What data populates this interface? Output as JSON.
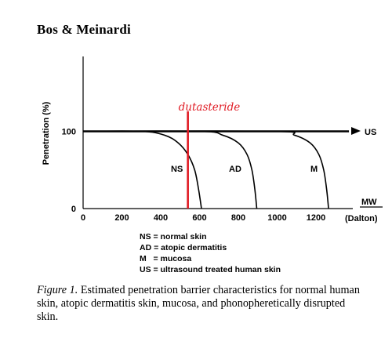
{
  "header": {
    "running_title": "Bos & Meinardi"
  },
  "chart_data": {
    "type": "line",
    "ylabel": "Penetration (%)",
    "xlabel": "MW",
    "x_unit_label": "(Dalton)",
    "x_ticks": [
      0,
      200,
      400,
      600,
      800,
      1000,
      1200
    ],
    "y_ticks": [
      0,
      100
    ],
    "xlim": [
      0,
      1380
    ],
    "ylim": [
      0,
      150
    ],
    "grid": false,
    "marker_line": {
      "label": "dutasteride",
      "x": 540,
      "color": "#e01b24"
    },
    "series": [
      {
        "name": "NS",
        "points": [
          [
            0,
            100
          ],
          [
            300,
            100
          ],
          [
            420,
            95
          ],
          [
            490,
            85
          ],
          [
            540,
            70
          ],
          [
            575,
            50
          ],
          [
            595,
            25
          ],
          [
            610,
            0
          ]
        ]
      },
      {
        "name": "AD",
        "points": [
          [
            0,
            100
          ],
          [
            600,
            100
          ],
          [
            720,
            95
          ],
          [
            800,
            85
          ],
          [
            845,
            70
          ],
          [
            870,
            50
          ],
          [
            885,
            25
          ],
          [
            895,
            0
          ]
        ]
      },
      {
        "name": "M",
        "points": [
          [
            0,
            100
          ],
          [
            980,
            100
          ],
          [
            1090,
            95
          ],
          [
            1170,
            85
          ],
          [
            1215,
            70
          ],
          [
            1240,
            50
          ],
          [
            1255,
            25
          ],
          [
            1265,
            0
          ]
        ]
      },
      {
        "name": "US",
        "points": [
          [
            0,
            100
          ],
          [
            1370,
            100
          ]
        ]
      }
    ]
  },
  "legend": {
    "items": [
      "NS = normal skin",
      "AD = atopic dermatitis",
      "M   = mucosa",
      "US = ultrasound treated human skin"
    ]
  },
  "caption": {
    "label": "Figure 1.",
    "text": " Estimated penetration barrier characteristics for normal human skin, atopic dermatitis skin, mucosa, and phonopheretically disrupted skin."
  }
}
